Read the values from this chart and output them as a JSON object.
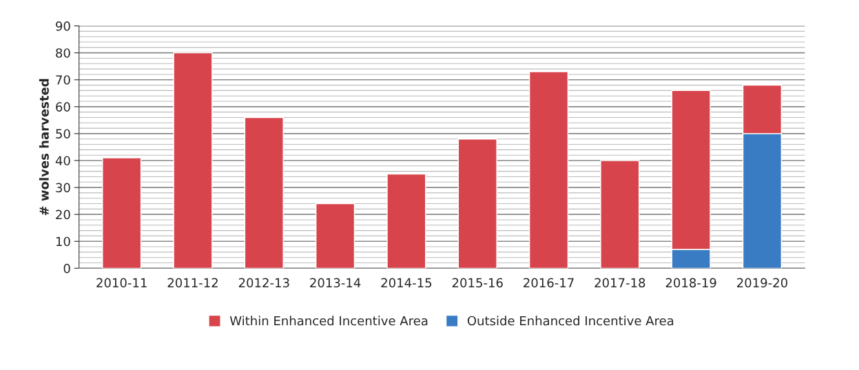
{
  "chart_data": {
    "type": "bar",
    "stacked": true,
    "ylabel": "# wolves harvested",
    "categories": [
      "2010-11",
      "2011-12",
      "2012-13",
      "2013-14",
      "2014-15",
      "2015-16",
      "2016-17",
      "2017-18",
      "2018-19",
      "2019-20"
    ],
    "series": [
      {
        "name": "Outside Enhanced Incentive Area",
        "color": "#3a7cc4",
        "values": [
          0,
          0,
          0,
          0,
          0,
          0,
          0,
          0,
          7,
          50
        ]
      },
      {
        "name": "Within Enhanced Incentive Area",
        "color": "#d8444b",
        "values": [
          41,
          80,
          56,
          24,
          35,
          48,
          73,
          40,
          59,
          18
        ]
      }
    ],
    "ylim": [
      0,
      90
    ],
    "yticks": [
      0,
      10,
      20,
      30,
      40,
      50,
      60,
      70,
      80,
      90
    ],
    "grid": "y",
    "legend": "bottom"
  }
}
